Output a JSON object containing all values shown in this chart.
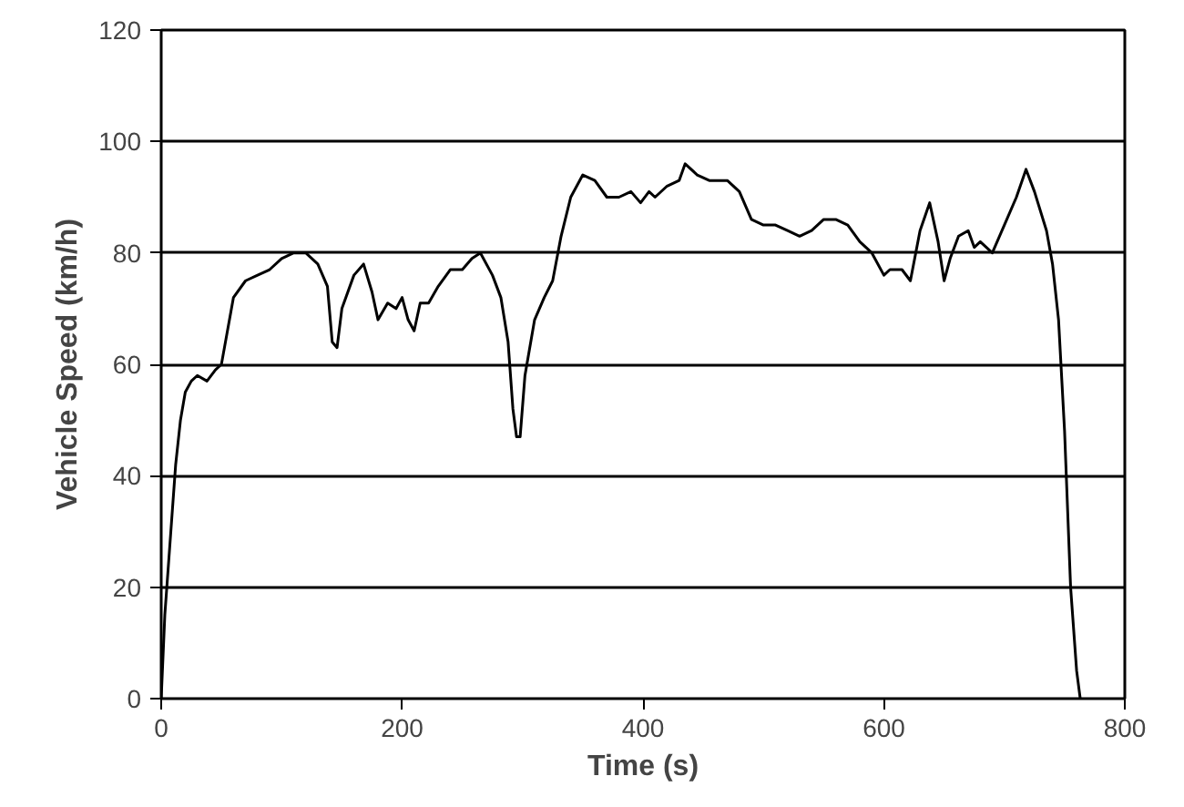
{
  "chart_data": {
    "type": "line",
    "xlabel": "Time (s)",
    "ylabel": "Vehicle Speed (km/h)",
    "xlim": [
      0,
      800
    ],
    "xticks": [
      0,
      200,
      400,
      600,
      800
    ],
    "ylim": [
      0,
      120
    ],
    "yticks": [
      0,
      20,
      40,
      60,
      80,
      100,
      120
    ],
    "grid": "y",
    "marker": "none",
    "line_style": "solid",
    "series": [
      {
        "color": "#000000",
        "x": [
          0,
          3,
          8,
          12,
          16,
          20,
          25,
          30,
          38,
          45,
          50,
          55,
          60,
          70,
          80,
          90,
          100,
          110,
          120,
          130,
          138,
          142,
          146,
          150,
          160,
          168,
          175,
          180,
          188,
          195,
          200,
          205,
          210,
          215,
          222,
          230,
          240,
          250,
          258,
          265,
          275,
          282,
          288,
          292,
          295,
          298,
          302,
          310,
          318,
          325,
          332,
          340,
          350,
          360,
          370,
          380,
          390,
          398,
          405,
          410,
          420,
          430,
          435,
          445,
          455,
          470,
          480,
          490,
          500,
          510,
          520,
          530,
          540,
          550,
          560,
          570,
          580,
          590,
          600,
          605,
          615,
          622,
          630,
          638,
          645,
          650,
          655,
          662,
          670,
          675,
          680,
          690,
          700,
          710,
          718,
          725,
          735,
          740,
          745,
          750,
          755,
          760,
          763
        ],
        "values": [
          0,
          15,
          30,
          42,
          50,
          55,
          57,
          58,
          57,
          59,
          60,
          66,
          72,
          75,
          76,
          77,
          79,
          80,
          80,
          78,
          74,
          64,
          63,
          70,
          76,
          78,
          73,
          68,
          71,
          70,
          72,
          68,
          66,
          71,
          71,
          74,
          77,
          77,
          79,
          80,
          76,
          72,
          64,
          52,
          47,
          47,
          58,
          68,
          72,
          75,
          83,
          90,
          94,
          93,
          90,
          90,
          91,
          89,
          91,
          90,
          92,
          93,
          96,
          94,
          93,
          93,
          91,
          86,
          85,
          85,
          84,
          83,
          84,
          86,
          86,
          85,
          82,
          80,
          76,
          77,
          77,
          75,
          84,
          89,
          82,
          75,
          79,
          83,
          84,
          81,
          82,
          80,
          85,
          90,
          95,
          91,
          84,
          78,
          68,
          48,
          20,
          5,
          0
        ]
      }
    ]
  }
}
